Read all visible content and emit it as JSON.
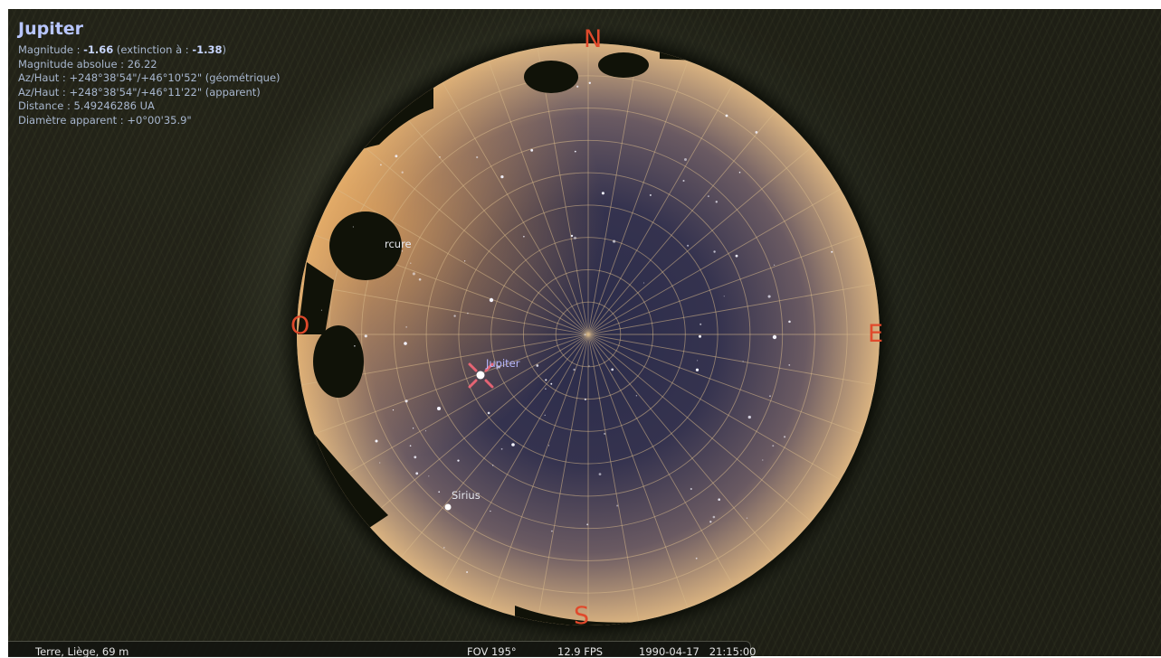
{
  "selected_object": {
    "name": "Jupiter",
    "magnitude_label": "Magnitude : ",
    "magnitude": "-1.66",
    "extinction_label": " (extinction à : ",
    "extinction": "-1.38",
    "extinction_close": ")",
    "absolute_magnitude": "Magnitude absolue : 26.22",
    "az_alt_geometric": "Az/Haut : +248°38'54\"/+46°10'52\" (géométrique)",
    "az_alt_apparent": "Az/Haut : +248°38'54\"/+46°11'22\" (apparent)",
    "distance": "Distance : 5.49246286 UA",
    "apparent_diameter": "Diamètre apparent : +0°00'35.9\""
  },
  "cardinals": {
    "north": "N",
    "east": "E",
    "south": "S",
    "west": "O"
  },
  "labels": {
    "jupiter": "Jupiter",
    "sirius": "Sirius",
    "mercure": "rcure"
  },
  "statusbar": {
    "location": "Terre, Liège, 69 m",
    "fov": "FOV 195°",
    "fps": "12.9 FPS",
    "datetime": "1990-04-17   21:15:00"
  },
  "colors": {
    "cardinal": "#e0492b",
    "grid": "#d9b98a",
    "info_text": "#a8b7cf",
    "selection_marker": "#ff6a7a"
  },
  "icons": {
    "selection": "crosshair-marker-icon"
  }
}
